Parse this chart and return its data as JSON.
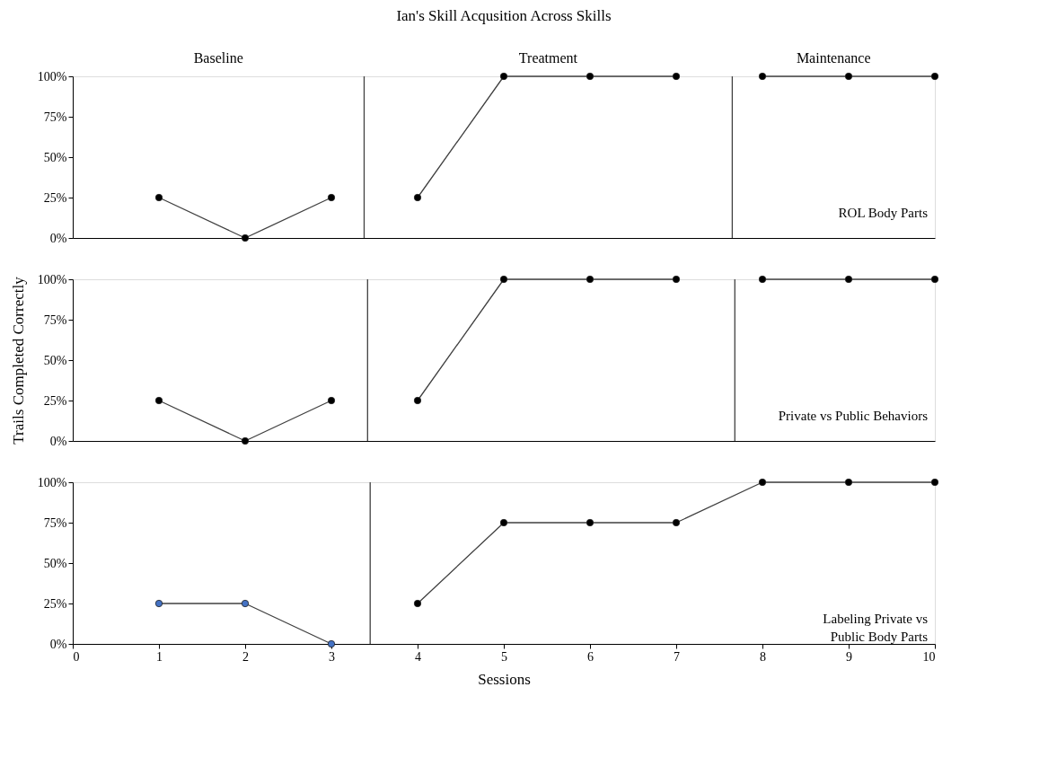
{
  "chart_data": [
    {
      "type": "line",
      "title": "Ian's Skill Acqusition Across Skills",
      "xlim": [
        0,
        10
      ],
      "xticks": [
        0,
        1,
        2,
        3,
        4,
        5,
        6,
        7,
        8,
        9,
        10
      ],
      "ylim": [
        0,
        100
      ],
      "yticks": [
        {
          "value": 0,
          "label": "0%"
        },
        {
          "value": 25,
          "label": "25%"
        },
        {
          "value": 50,
          "label": "50%"
        },
        {
          "value": 75,
          "label": "75%"
        },
        {
          "value": 100,
          "label": "100%"
        }
      ],
      "tick_labels": "y",
      "grid": false,
      "marker": "circle",
      "line_style": "solid",
      "series": [
        {
          "color": "#000000",
          "x": [
            1,
            2,
            3
          ],
          "values": [
            25,
            0,
            25
          ]
        },
        {
          "color": "#000000",
          "x": [
            4,
            5,
            6,
            7
          ],
          "values": [
            25,
            100,
            100,
            100
          ]
        },
        {
          "color": "#000000",
          "x": [
            8,
            9,
            10
          ],
          "values": [
            100,
            100,
            100
          ]
        }
      ],
      "ref_lines": [
        {
          "axis": "x",
          "value": 3.38
        },
        {
          "axis": "x",
          "value": 7.65
        }
      ],
      "annotations": [
        "Baseline",
        "Treatment",
        "Maintenance",
        "ROL Body Parts"
      ]
    },
    {
      "type": "line",
      "ylabel": "Trails Completed Correctly",
      "xlim": [
        0,
        10
      ],
      "xticks": [
        0,
        1,
        2,
        3,
        4,
        5,
        6,
        7,
        8,
        9,
        10
      ],
      "ylim": [
        0,
        100
      ],
      "yticks": [
        {
          "value": 0,
          "label": "0%"
        },
        {
          "value": 25,
          "label": "25%"
        },
        {
          "value": 50,
          "label": "50%"
        },
        {
          "value": 75,
          "label": "75%"
        },
        {
          "value": 100,
          "label": "100%"
        }
      ],
      "tick_labels": "y",
      "grid": false,
      "marker": "circle",
      "line_style": "solid",
      "series": [
        {
          "color": "#000000",
          "x": [
            1,
            2,
            3
          ],
          "values": [
            25,
            0,
            25
          ]
        },
        {
          "color": "#000000",
          "x": [
            4,
            5,
            6,
            7
          ],
          "values": [
            25,
            100,
            100,
            100
          ]
        },
        {
          "color": "#000000",
          "x": [
            8,
            9,
            10
          ],
          "values": [
            100,
            100,
            100
          ]
        }
      ],
      "ref_lines": [
        {
          "axis": "x",
          "value": 3.42
        },
        {
          "axis": "x",
          "value": 7.68
        }
      ],
      "annotations": [
        "Private vs Public Behaviors"
      ]
    },
    {
      "type": "line",
      "xlabel": "Sessions",
      "xlim": [
        0,
        10
      ],
      "xticks": [
        0,
        1,
        2,
        3,
        4,
        5,
        6,
        7,
        8,
        9,
        10
      ],
      "ylim": [
        0,
        100
      ],
      "yticks": [
        {
          "value": 0,
          "label": "0%"
        },
        {
          "value": 25,
          "label": "25%"
        },
        {
          "value": 50,
          "label": "50%"
        },
        {
          "value": 75,
          "label": "75%"
        },
        {
          "value": 100,
          "label": "100%"
        }
      ],
      "grid": false,
      "marker": "circle",
      "line_style": "solid",
      "series": [
        {
          "color": "#4472c4",
          "x": [
            1,
            2,
            3
          ],
          "values": [
            25,
            25,
            0
          ]
        },
        {
          "color": "#000000",
          "x": [
            4,
            5,
            6,
            7,
            8,
            9,
            10
          ],
          "values": [
            25,
            75,
            75,
            75,
            100,
            100,
            100
          ]
        }
      ],
      "ref_lines": [
        {
          "axis": "x",
          "value": 3.45
        }
      ],
      "annotations": [
        "Labeling Private vs\nPublic Body Parts"
      ]
    }
  ]
}
